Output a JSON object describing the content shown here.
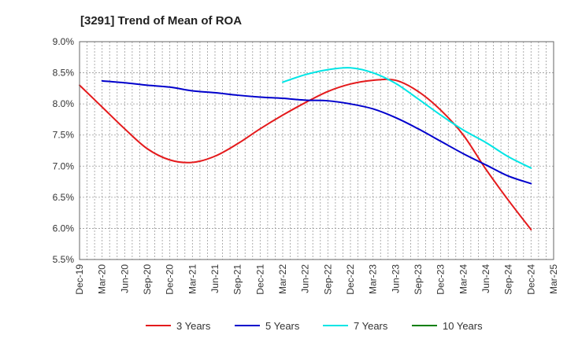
{
  "chart_data": {
    "type": "line",
    "title": "[3291]  Trend of Mean of ROA",
    "xlabel": "",
    "ylabel": "",
    "ylim": [
      5.5,
      9.0
    ],
    "yticks": [
      "5.5%",
      "6.0%",
      "6.5%",
      "7.0%",
      "7.5%",
      "8.0%",
      "8.5%",
      "9.0%"
    ],
    "ytick_values": [
      5.5,
      6.0,
      6.5,
      7.0,
      7.5,
      8.0,
      8.5,
      9.0
    ],
    "categories": [
      "Dec-19",
      "Mar-20",
      "Jun-20",
      "Sep-20",
      "Dec-20",
      "Mar-21",
      "Jun-21",
      "Sep-21",
      "Dec-21",
      "Mar-22",
      "Jun-22",
      "Sep-22",
      "Dec-22",
      "Mar-23",
      "Jun-23",
      "Sep-23",
      "Dec-23",
      "Mar-24",
      "Jun-24",
      "Sep-24",
      "Dec-24",
      "Mar-25"
    ],
    "grid": true,
    "legend_position": "bottom",
    "series": [
      {
        "name": "3 Years",
        "color": "#e41a1c",
        "values": [
          8.3,
          7.95,
          7.6,
          7.28,
          7.1,
          7.06,
          7.16,
          7.36,
          7.6,
          7.82,
          8.02,
          8.2,
          8.32,
          8.38,
          8.38,
          8.2,
          7.9,
          7.5,
          6.95,
          6.45,
          5.98,
          null
        ]
      },
      {
        "name": "5 Years",
        "color": "#0000cc",
        "values": [
          null,
          8.37,
          8.34,
          8.3,
          8.27,
          8.21,
          8.18,
          8.14,
          8.11,
          8.09,
          8.06,
          8.05,
          8.0,
          7.92,
          7.78,
          7.6,
          7.4,
          7.2,
          7.02,
          6.84,
          6.72,
          null
        ]
      },
      {
        "name": "7 Years",
        "color": "#00e5e5",
        "values": [
          null,
          null,
          null,
          null,
          null,
          null,
          null,
          null,
          null,
          8.35,
          8.47,
          8.55,
          8.58,
          8.5,
          8.33,
          8.08,
          7.82,
          7.58,
          7.38,
          7.15,
          6.97,
          null
        ]
      },
      {
        "name": "10 Years",
        "color": "#007f00",
        "values": [
          null,
          null,
          null,
          null,
          null,
          null,
          null,
          null,
          null,
          null,
          null,
          null,
          null,
          null,
          null,
          null,
          null,
          null,
          null,
          null,
          null,
          null
        ]
      }
    ]
  }
}
